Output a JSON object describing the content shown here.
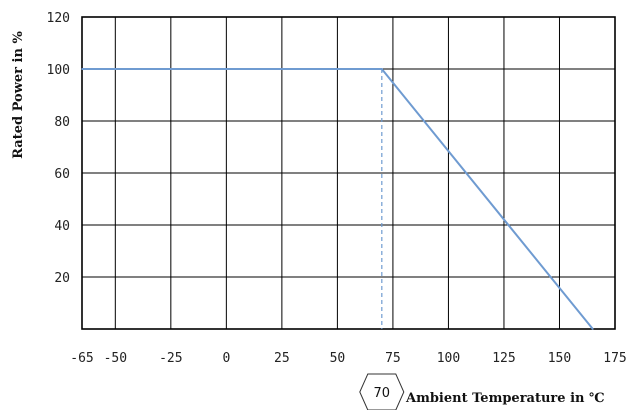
{
  "chart_data": {
    "type": "line",
    "title": "",
    "xlabel": "Ambient Temperature in ℃",
    "ylabel": "Rated Power in %",
    "xlim": [
      -65,
      175
    ],
    "ylim": [
      0,
      120
    ],
    "x_ticks": [
      -65,
      -50,
      -25,
      0,
      25,
      50,
      75,
      100,
      125,
      150,
      175
    ],
    "y_ticks": [
      20,
      40,
      60,
      80,
      100,
      120
    ],
    "x_tick_labels": [
      "-65",
      "-50",
      "-25",
      "0",
      "25",
      "50",
      "75",
      "100",
      "125",
      "150",
      "175"
    ],
    "y_tick_labels": [
      "20",
      "40",
      "60",
      "80",
      "100",
      "120"
    ],
    "grid": true,
    "series": [
      {
        "x": [
          -65,
          70,
          165
        ],
        "y": [
          100,
          100,
          0
        ],
        "color": "#6f9bd1"
      }
    ],
    "annotation": {
      "label": "70",
      "x": 70,
      "style": "dashed vertical line from the knee point down to the x-axis"
    }
  }
}
